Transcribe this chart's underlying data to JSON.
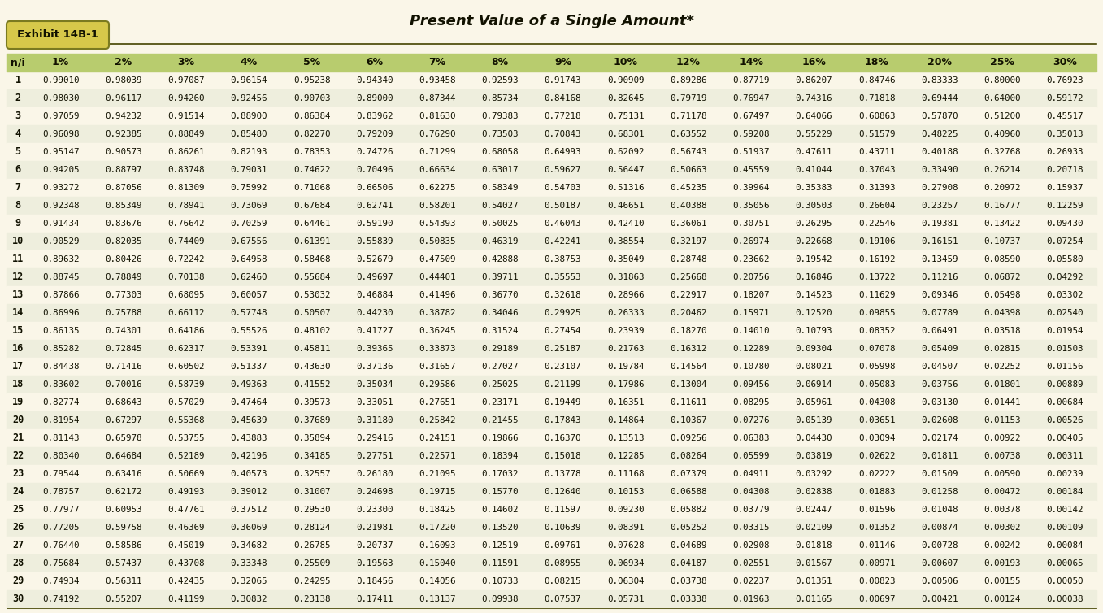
{
  "title": "Present Value of a Single Amount*",
  "exhibit_label": "Exhibit 14B-1",
  "bg_color": "#faf6e8",
  "table_area_bg": "#f0f0d8",
  "header_row_bg": "#b8cc6e",
  "row_bg_odd": "#faf6e8",
  "row_bg_even": "#eeeedd",
  "badge_fill": "#d6c84a",
  "badge_border": "#7a7a20",
  "line_color": "#444400",
  "text_color_dark": "#111100",
  "text_color_header": "#111100",
  "columns": [
    "n/i",
    "1%",
    "2%",
    "3%",
    "4%",
    "5%",
    "6%",
    "7%",
    "8%",
    "9%",
    "10%",
    "12%",
    "14%",
    "16%",
    "18%",
    "20%",
    "25%",
    "30%"
  ],
  "rows": [
    [
      1,
      0.9901,
      0.98039,
      0.97087,
      0.96154,
      0.95238,
      0.9434,
      0.93458,
      0.92593,
      0.91743,
      0.90909,
      0.89286,
      0.87719,
      0.86207,
      0.84746,
      0.83333,
      0.8,
      0.76923
    ],
    [
      2,
      0.9803,
      0.96117,
      0.9426,
      0.92456,
      0.90703,
      0.89,
      0.87344,
      0.85734,
      0.84168,
      0.82645,
      0.79719,
      0.76947,
      0.74316,
      0.71818,
      0.69444,
      0.64,
      0.59172
    ],
    [
      3,
      0.97059,
      0.94232,
      0.91514,
      0.889,
      0.86384,
      0.83962,
      0.8163,
      0.79383,
      0.77218,
      0.75131,
      0.71178,
      0.67497,
      0.64066,
      0.60863,
      0.5787,
      0.512,
      0.45517
    ],
    [
      4,
      0.96098,
      0.92385,
      0.88849,
      0.8548,
      0.8227,
      0.79209,
      0.7629,
      0.73503,
      0.70843,
      0.68301,
      0.63552,
      0.59208,
      0.55229,
      0.51579,
      0.48225,
      0.4096,
      0.35013
    ],
    [
      5,
      0.95147,
      0.90573,
      0.86261,
      0.82193,
      0.78353,
      0.74726,
      0.71299,
      0.68058,
      0.64993,
      0.62092,
      0.56743,
      0.51937,
      0.47611,
      0.43711,
      0.40188,
      0.32768,
      0.26933
    ],
    [
      6,
      0.94205,
      0.88797,
      0.83748,
      0.79031,
      0.74622,
      0.70496,
      0.66634,
      0.63017,
      0.59627,
      0.56447,
      0.50663,
      0.45559,
      0.41044,
      0.37043,
      0.3349,
      0.26214,
      0.20718
    ],
    [
      7,
      0.93272,
      0.87056,
      0.81309,
      0.75992,
      0.71068,
      0.66506,
      0.62275,
      0.58349,
      0.54703,
      0.51316,
      0.45235,
      0.39964,
      0.35383,
      0.31393,
      0.27908,
      0.20972,
      0.15937
    ],
    [
      8,
      0.92348,
      0.85349,
      0.78941,
      0.73069,
      0.67684,
      0.62741,
      0.58201,
      0.54027,
      0.50187,
      0.46651,
      0.40388,
      0.35056,
      0.30503,
      0.26604,
      0.23257,
      0.16777,
      0.12259
    ],
    [
      9,
      0.91434,
      0.83676,
      0.76642,
      0.70259,
      0.64461,
      0.5919,
      0.54393,
      0.50025,
      0.46043,
      0.4241,
      0.36061,
      0.30751,
      0.26295,
      0.22546,
      0.19381,
      0.13422,
      0.0943
    ],
    [
      10,
      0.90529,
      0.82035,
      0.74409,
      0.67556,
      0.61391,
      0.55839,
      0.50835,
      0.46319,
      0.42241,
      0.38554,
      0.32197,
      0.26974,
      0.22668,
      0.19106,
      0.16151,
      0.10737,
      0.07254
    ],
    [
      11,
      0.89632,
      0.80426,
      0.72242,
      0.64958,
      0.58468,
      0.52679,
      0.47509,
      0.42888,
      0.38753,
      0.35049,
      0.28748,
      0.23662,
      0.19542,
      0.16192,
      0.13459,
      0.0859,
      0.0558
    ],
    [
      12,
      0.88745,
      0.78849,
      0.70138,
      0.6246,
      0.55684,
      0.49697,
      0.44401,
      0.39711,
      0.35553,
      0.31863,
      0.25668,
      0.20756,
      0.16846,
      0.13722,
      0.11216,
      0.06872,
      0.04292
    ],
    [
      13,
      0.87866,
      0.77303,
      0.68095,
      0.60057,
      0.53032,
      0.46884,
      0.41496,
      0.3677,
      0.32618,
      0.28966,
      0.22917,
      0.18207,
      0.14523,
      0.11629,
      0.09346,
      0.05498,
      0.03302
    ],
    [
      14,
      0.86996,
      0.75788,
      0.66112,
      0.57748,
      0.50507,
      0.4423,
      0.38782,
      0.34046,
      0.29925,
      0.26333,
      0.20462,
      0.15971,
      0.1252,
      0.09855,
      0.07789,
      0.04398,
      0.0254
    ],
    [
      15,
      0.86135,
      0.74301,
      0.64186,
      0.55526,
      0.48102,
      0.41727,
      0.36245,
      0.31524,
      0.27454,
      0.23939,
      0.1827,
      0.1401,
      0.10793,
      0.08352,
      0.06491,
      0.03518,
      0.01954
    ],
    [
      16,
      0.85282,
      0.72845,
      0.62317,
      0.53391,
      0.45811,
      0.39365,
      0.33873,
      0.29189,
      0.25187,
      0.21763,
      0.16312,
      0.12289,
      0.09304,
      0.07078,
      0.05409,
      0.02815,
      0.01503
    ],
    [
      17,
      0.84438,
      0.71416,
      0.60502,
      0.51337,
      0.4363,
      0.37136,
      0.31657,
      0.27027,
      0.23107,
      0.19784,
      0.14564,
      0.1078,
      0.08021,
      0.05998,
      0.04507,
      0.02252,
      0.01156
    ],
    [
      18,
      0.83602,
      0.70016,
      0.58739,
      0.49363,
      0.41552,
      0.35034,
      0.29586,
      0.25025,
      0.21199,
      0.17986,
      0.13004,
      0.09456,
      0.06914,
      0.05083,
      0.03756,
      0.01801,
      0.00889
    ],
    [
      19,
      0.82774,
      0.68643,
      0.57029,
      0.47464,
      0.39573,
      0.33051,
      0.27651,
      0.23171,
      0.19449,
      0.16351,
      0.11611,
      0.08295,
      0.05961,
      0.04308,
      0.0313,
      0.01441,
      0.00684
    ],
    [
      20,
      0.81954,
      0.67297,
      0.55368,
      0.45639,
      0.37689,
      0.3118,
      0.25842,
      0.21455,
      0.17843,
      0.14864,
      0.10367,
      0.07276,
      0.05139,
      0.03651,
      0.02608,
      0.01153,
      0.00526
    ],
    [
      21,
      0.81143,
      0.65978,
      0.53755,
      0.43883,
      0.35894,
      0.29416,
      0.24151,
      0.19866,
      0.1637,
      0.13513,
      0.09256,
      0.06383,
      0.0443,
      0.03094,
      0.02174,
      0.00922,
      0.00405
    ],
    [
      22,
      0.8034,
      0.64684,
      0.52189,
      0.42196,
      0.34185,
      0.27751,
      0.22571,
      0.18394,
      0.15018,
      0.12285,
      0.08264,
      0.05599,
      0.03819,
      0.02622,
      0.01811,
      0.00738,
      0.00311
    ],
    [
      23,
      0.79544,
      0.63416,
      0.50669,
      0.40573,
      0.32557,
      0.2618,
      0.21095,
      0.17032,
      0.13778,
      0.11168,
      0.07379,
      0.04911,
      0.03292,
      0.02222,
      0.01509,
      0.0059,
      0.00239
    ],
    [
      24,
      0.78757,
      0.62172,
      0.49193,
      0.39012,
      0.31007,
      0.24698,
      0.19715,
      0.1577,
      0.1264,
      0.10153,
      0.06588,
      0.04308,
      0.02838,
      0.01883,
      0.01258,
      0.00472,
      0.00184
    ],
    [
      25,
      0.77977,
      0.60953,
      0.47761,
      0.37512,
      0.2953,
      0.233,
      0.18425,
      0.14602,
      0.11597,
      0.0923,
      0.05882,
      0.03779,
      0.02447,
      0.01596,
      0.01048,
      0.00378,
      0.00142
    ],
    [
      26,
      0.77205,
      0.59758,
      0.46369,
      0.36069,
      0.28124,
      0.21981,
      0.1722,
      0.1352,
      0.10639,
      0.08391,
      0.05252,
      0.03315,
      0.02109,
      0.01352,
      0.00874,
      0.00302,
      0.00109
    ],
    [
      27,
      0.7644,
      0.58586,
      0.45019,
      0.34682,
      0.26785,
      0.20737,
      0.16093,
      0.12519,
      0.09761,
      0.07628,
      0.04689,
      0.02908,
      0.01818,
      0.01146,
      0.00728,
      0.00242,
      0.00084
    ],
    [
      28,
      0.75684,
      0.57437,
      0.43708,
      0.33348,
      0.25509,
      0.19563,
      0.1504,
      0.11591,
      0.08955,
      0.06934,
      0.04187,
      0.02551,
      0.01567,
      0.00971,
      0.00607,
      0.00193,
      0.00065
    ],
    [
      29,
      0.74934,
      0.56311,
      0.42435,
      0.32065,
      0.24295,
      0.18456,
      0.14056,
      0.10733,
      0.08215,
      0.06304,
      0.03738,
      0.02237,
      0.01351,
      0.00823,
      0.00506,
      0.00155,
      0.0005
    ],
    [
      30,
      0.74192,
      0.55207,
      0.41199,
      0.30832,
      0.23138,
      0.17411,
      0.13137,
      0.09938,
      0.07537,
      0.05731,
      0.03338,
      0.01963,
      0.01165,
      0.00697,
      0.00421,
      0.00124,
      0.00038
    ]
  ]
}
